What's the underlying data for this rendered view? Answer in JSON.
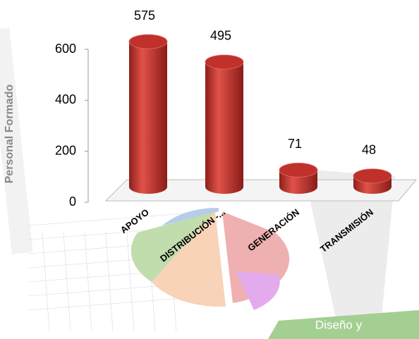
{
  "chart_data": {
    "type": "bar",
    "ylabel": "Personal Formado",
    "categories": [
      "APOYO",
      "DISTRIBUCIÓN -...",
      "GENERACIÓN",
      "TRANSMISIÓN"
    ],
    "values": [
      575,
      495,
      71,
      48
    ],
    "color": "#c0312b",
    "ylim": [
      0,
      600
    ],
    "yticks": [
      0,
      200,
      400,
      600
    ],
    "grid": false
  },
  "logo_text": "Diseño y"
}
